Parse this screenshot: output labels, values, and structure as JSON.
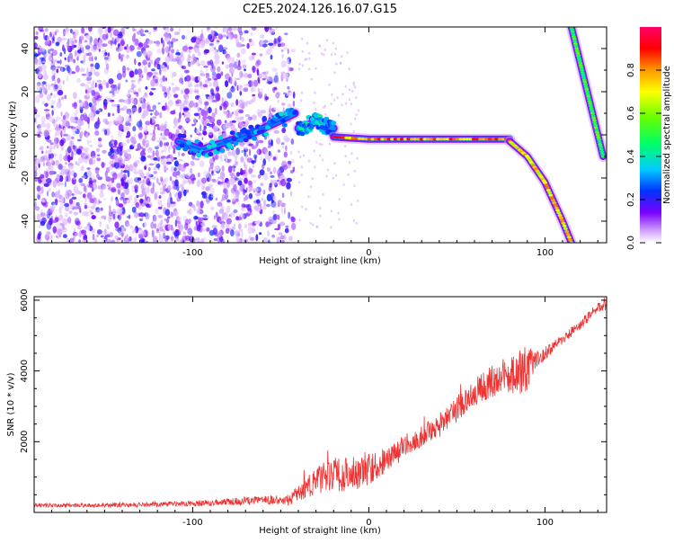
{
  "title": "C2E5.2024.126.16.07.G15",
  "colors": {
    "snr_line": "#ee3333",
    "axis": "#000000",
    "spectro_background": "#ffffff"
  },
  "chart_data": [
    {
      "type": "heatmap",
      "title": "C2E5.2024.126.16.07.G15",
      "xlabel": "Height of straight line (km)",
      "ylabel": "Frequency (Hz)",
      "xlim": [
        -190,
        135
      ],
      "ylim": [
        -50,
        50
      ],
      "x_ticks": [
        -100,
        0,
        100
      ],
      "y_ticks": [
        -40,
        -20,
        0,
        20,
        40
      ],
      "colorbar": {
        "label": "Normalized spectral amplitude",
        "range": [
          0,
          1
        ],
        "ticks": [
          "0.0",
          "0.2",
          "0.4",
          "0.6",
          "0.8"
        ],
        "colormap": "hsv-like: white → violet → blue → cyan → green → yellow → orange → red → magenta"
      },
      "traces": [
        {
          "segment": "noise",
          "x_range": [
            -190,
            -42
          ],
          "frequency_range": [
            -50,
            50
          ],
          "amplitude": 0.1
        },
        {
          "segment": "emerging",
          "x": [
            -108,
            -95,
            -80,
            -65,
            -52,
            -42
          ],
          "frequency": [
            -3,
            -7,
            -3,
            1,
            6,
            10
          ],
          "amplitude": 0.35
        },
        {
          "segment": "transition",
          "x": [
            -40,
            -30,
            -20
          ],
          "frequency": [
            3,
            6,
            3
          ],
          "amplitude": 0.4
        },
        {
          "segment": "steady",
          "x": [
            -20,
            0,
            40,
            80
          ],
          "frequency": [
            -1,
            -2,
            -2,
            -2
          ],
          "amplitude": 0.9
        },
        {
          "segment": "fall",
          "x": [
            80,
            90,
            100,
            110,
            115
          ],
          "frequency": [
            -3,
            -10,
            -22,
            -40,
            -50
          ],
          "amplitude": 0.8
        },
        {
          "segment": "alias",
          "x": [
            115,
            133
          ],
          "frequency": [
            50,
            -10
          ],
          "amplitude": 0.55
        }
      ]
    },
    {
      "type": "line",
      "xlabel": "Height of straight line (km)",
      "ylabel": "SNR (10 * v/v)",
      "xlim": [
        -190,
        135
      ],
      "ylim": [
        0,
        6100
      ],
      "x_ticks": [
        -100,
        0,
        100
      ],
      "y_ticks": [
        2000,
        4000,
        6000
      ],
      "series": [
        {
          "x": [
            -190,
            -150,
            -100,
            -60,
            -45,
            -35,
            -30,
            -20,
            -10,
            0,
            10,
            20,
            30,
            40,
            50,
            55,
            60,
            70,
            80,
            85,
            90,
            95,
            100,
            110,
            120,
            130,
            135
          ],
          "y": [
            200,
            200,
            250,
            350,
            350,
            700,
            900,
            1050,
            1100,
            1200,
            1500,
            1900,
            2150,
            2500,
            2900,
            3200,
            3400,
            3700,
            3850,
            3950,
            4050,
            4300,
            4500,
            4900,
            5300,
            5800,
            5850
          ],
          "noise_amplitude": [
            60,
            60,
            80,
            120,
            150,
            300,
            450,
            500,
            500,
            450,
            350,
            300,
            300,
            300,
            400,
            400,
            400,
            450,
            500,
            600,
            700,
            250,
            200,
            150,
            150,
            150,
            150
          ]
        }
      ]
    }
  ]
}
